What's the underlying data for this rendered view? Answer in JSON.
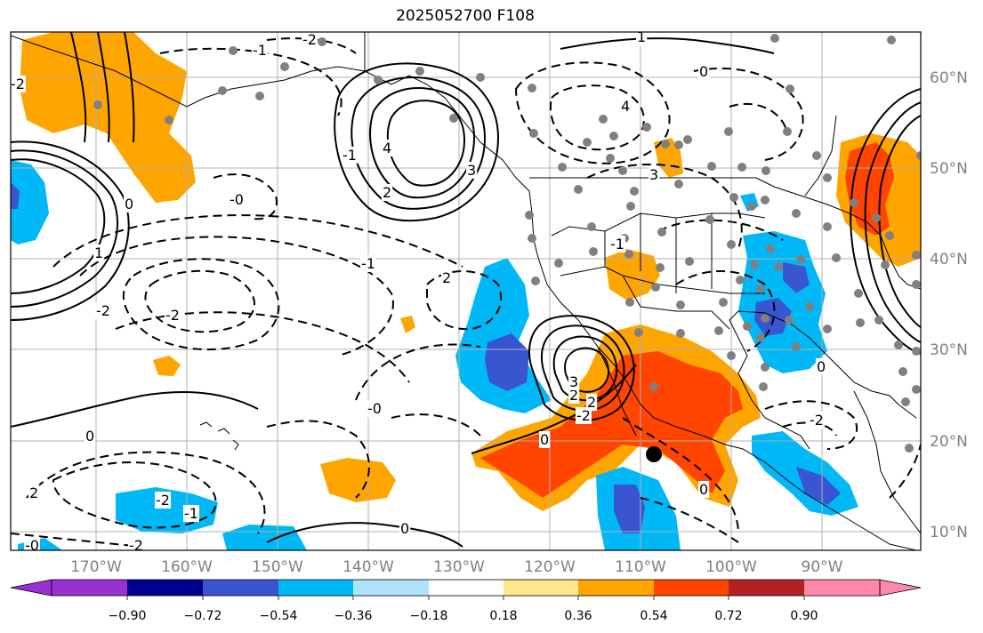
{
  "title": "2025052700 F108",
  "lon_ticks": [
    "170°W",
    "160°W",
    "150°W",
    "140°W",
    "130°W",
    "120°W",
    "110°W",
    "100°W",
    "90°W"
  ],
  "lat_ticks": [
    "60°N",
    "50°N",
    "40°N",
    "30°N",
    "20°N",
    "10°N"
  ],
  "colorbar": {
    "ticks": [
      "−0.90",
      "−0.72",
      "−0.54",
      "−0.36",
      "−0.18",
      "0.18",
      "0.36",
      "0.54",
      "0.72",
      "0.90"
    ],
    "colors": [
      "#9b30d0",
      "#000090",
      "#3a55d0",
      "#00b8f5",
      "#aee2fb",
      "#ffffff",
      "#ffe88a",
      "#ffa500",
      "#ff4500",
      "#b22222",
      "#ff88aa"
    ]
  },
  "contour_labels": [
    "-1",
    "-2",
    "1",
    "0",
    "3",
    "4",
    "-2",
    "2",
    "-1",
    "0",
    "4",
    "3",
    "-0",
    "-2",
    "-1",
    "-2",
    "2",
    "1",
    "-1",
    "-2",
    "2",
    "3",
    "2",
    "0",
    "-0",
    "0",
    "2",
    "-2",
    "0",
    "-2",
    "-1",
    "0",
    "-0",
    "0",
    "-2"
  ],
  "marker": "black-dot"
}
